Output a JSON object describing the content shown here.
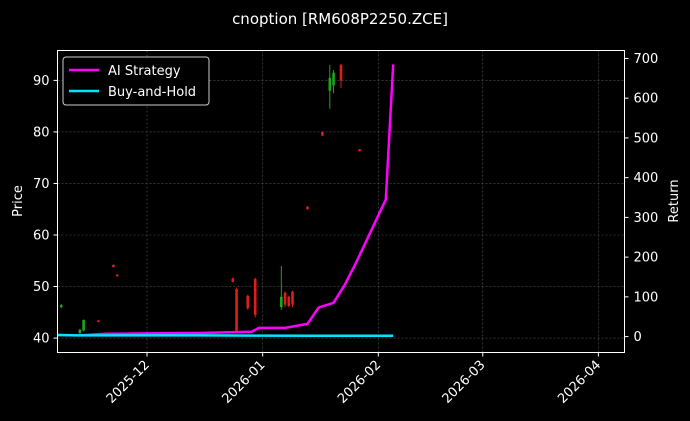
{
  "chart_data": {
    "type": "line",
    "title": "cnoption [RM608P2250.ZCE]",
    "xlabel": "",
    "ylabel_left": "Price",
    "ylabel_right": "Return",
    "x_ticks": [
      "2025-12",
      "2026-01",
      "2026-02",
      "2026-03",
      "2026-04"
    ],
    "y_ticks_left": [
      40,
      50,
      60,
      70,
      80,
      90
    ],
    "y_ticks_right": [
      0,
      100,
      200,
      300,
      400,
      500,
      600,
      700
    ],
    "x_range": [
      "2025-11-07",
      "2026-04-08"
    ],
    "ylim_left": [
      37.2,
      95.8
    ],
    "ylim_right": [
      -40,
      720
    ],
    "grid": true,
    "legend_position": "top-left",
    "colors": {
      "background": "#000000",
      "ai_strategy": "#ff00ff",
      "buy_and_hold": "#00e5ff",
      "candle_up": "#1aa81a",
      "candle_down": "#e01c1c",
      "grid": "#555555",
      "axes": "#ffffff"
    },
    "series": [
      {
        "name": "AI Strategy",
        "axis": "right",
        "points": [
          [
            "2025-11-07",
            4
          ],
          [
            "2025-11-13",
            3
          ],
          [
            "2025-11-20",
            7
          ],
          [
            "2025-12-01",
            8
          ],
          [
            "2025-12-15",
            9
          ],
          [
            "2025-12-29",
            12
          ],
          [
            "2025-12-31",
            22
          ],
          [
            "2026-01-07",
            22
          ],
          [
            "2026-01-13",
            32
          ],
          [
            "2026-01-16",
            73
          ],
          [
            "2026-01-20",
            85
          ],
          [
            "2026-01-23",
            130
          ],
          [
            "2026-01-26",
            185
          ],
          [
            "2026-02-03",
            345
          ],
          [
            "2026-02-05",
            685
          ]
        ]
      },
      {
        "name": "Buy-and-Hold",
        "axis": "right",
        "points": [
          [
            "2025-11-07",
            4
          ],
          [
            "2025-11-12",
            3
          ],
          [
            "2025-11-20",
            3
          ],
          [
            "2025-12-15",
            3
          ],
          [
            "2026-01-15",
            2
          ],
          [
            "2026-02-05",
            2
          ]
        ]
      }
    ],
    "candles": [
      {
        "date": "2025-11-08",
        "open": 46.0,
        "close": 46.4,
        "high": 46.6,
        "low": 45.8
      },
      {
        "date": "2025-11-13",
        "open": 41.0,
        "close": 41.6,
        "high": 41.8,
        "low": 40.6
      },
      {
        "date": "2025-11-14",
        "open": 41.5,
        "close": 43.5,
        "high": 43.6,
        "low": 41.3
      },
      {
        "date": "2025-11-18",
        "open": 43.4,
        "close": 43.2,
        "high": 43.5,
        "low": 43.1
      },
      {
        "date": "2025-11-22",
        "open": 54.2,
        "close": 53.8,
        "high": 54.3,
        "low": 53.7
      },
      {
        "date": "2025-11-23",
        "open": 52.3,
        "close": 52.0,
        "high": 52.4,
        "low": 51.9
      },
      {
        "date": "2025-12-24",
        "open": 51.6,
        "close": 50.9,
        "high": 51.7,
        "low": 50.8
      },
      {
        "date": "2025-12-25",
        "open": 49.5,
        "close": 41.2,
        "high": 49.8,
        "low": 41.0
      },
      {
        "date": "2025-12-28",
        "open": 48.2,
        "close": 45.8,
        "high": 48.4,
        "low": 45.5
      },
      {
        "date": "2025-12-30",
        "open": 51.5,
        "close": 44.5,
        "high": 51.7,
        "low": 44.0
      },
      {
        "date": "2026-01-06",
        "open": 46.0,
        "close": 48.0,
        "high": 54.0,
        "low": 45.5
      },
      {
        "date": "2026-01-07",
        "open": 48.8,
        "close": 46.5,
        "high": 49.0,
        "low": 46.0
      },
      {
        "date": "2026-01-08",
        "open": 48.0,
        "close": 46.2,
        "high": 48.2,
        "low": 46.0
      },
      {
        "date": "2026-01-09",
        "open": 49.0,
        "close": 46.5,
        "high": 49.2,
        "low": 46.0
      },
      {
        "date": "2026-01-13",
        "open": 65.5,
        "close": 65.0,
        "high": 65.6,
        "low": 64.9
      },
      {
        "date": "2026-01-17",
        "open": 80.0,
        "close": 79.3,
        "high": 80.1,
        "low": 79.2
      },
      {
        "date": "2026-01-19",
        "open": 88.0,
        "close": 90.5,
        "high": 93.0,
        "low": 84.5
      },
      {
        "date": "2026-01-20",
        "open": 89.0,
        "close": 91.5,
        "high": 92.0,
        "low": 87.5
      },
      {
        "date": "2026-01-22",
        "open": 93.0,
        "close": 90.0,
        "high": 93.2,
        "low": 88.5
      },
      {
        "date": "2026-01-27",
        "open": 76.6,
        "close": 76.3,
        "high": 76.7,
        "low": 76.2
      }
    ]
  }
}
